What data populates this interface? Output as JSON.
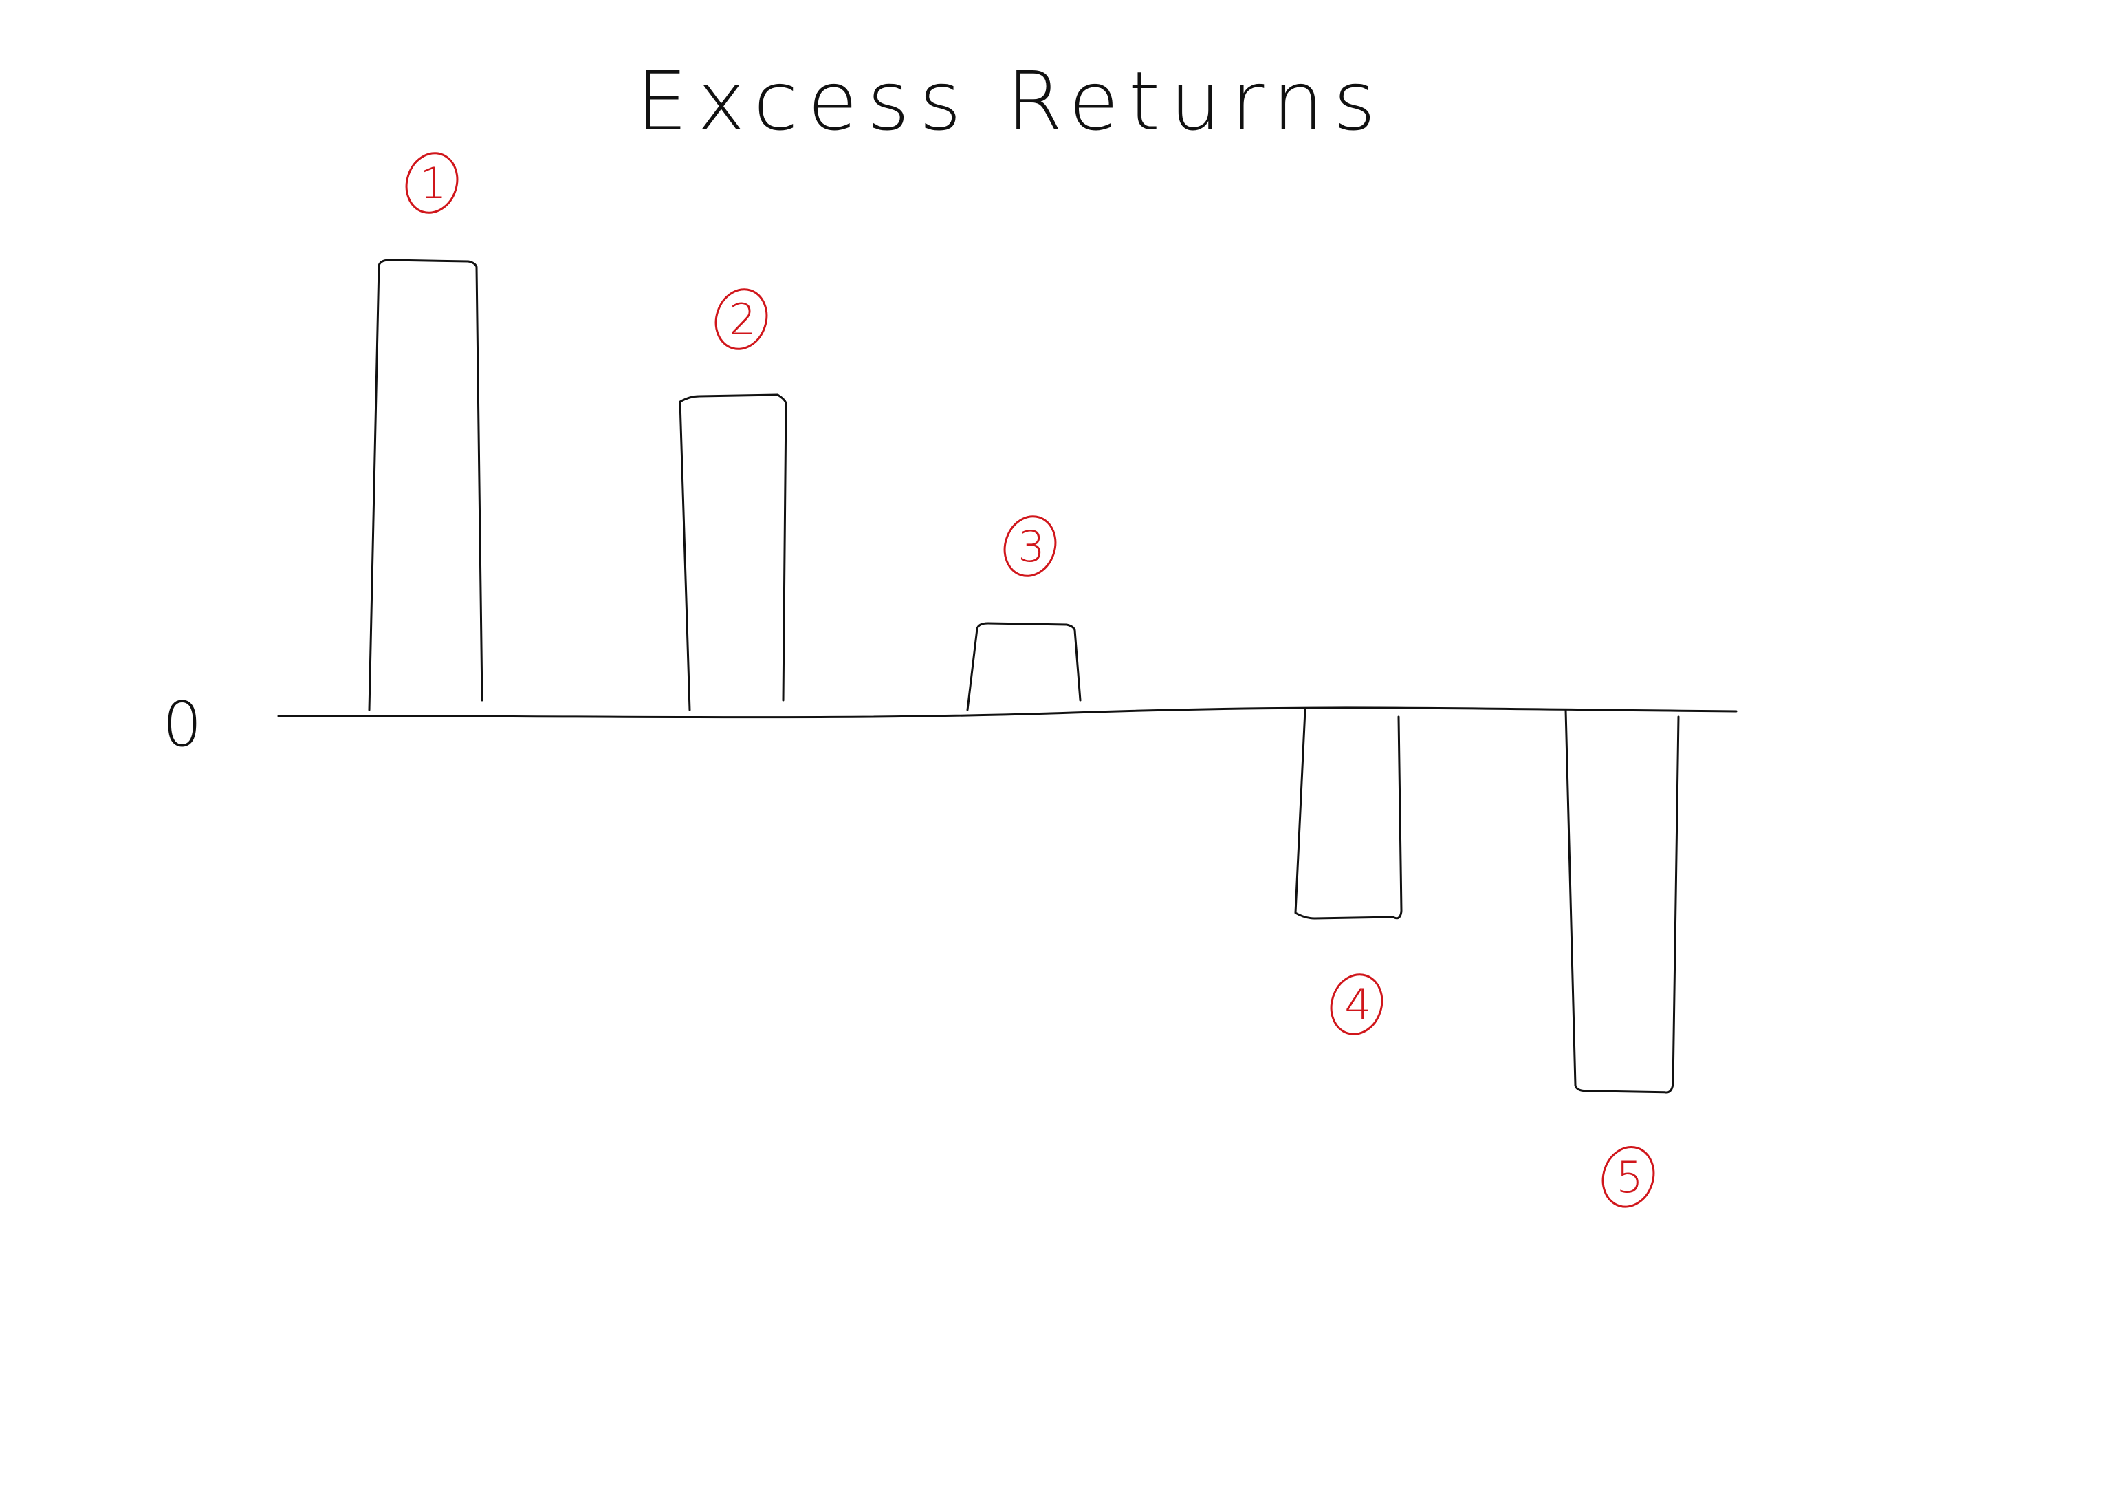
{
  "chart_data": {
    "type": "bar",
    "title": "Excess Returns",
    "xlabel": "",
    "ylabel": "",
    "zero_label": "0",
    "categories": [
      "1",
      "2",
      "3",
      "4",
      "5"
    ],
    "values": [
      10,
      7,
      2,
      -4.5,
      -8.3
    ],
    "ylim": [
      -12,
      12
    ],
    "grid": false,
    "legend": "none",
    "bar_stroke_color": "#111111",
    "label_color": "#d0161b",
    "background": "#ffffff"
  }
}
